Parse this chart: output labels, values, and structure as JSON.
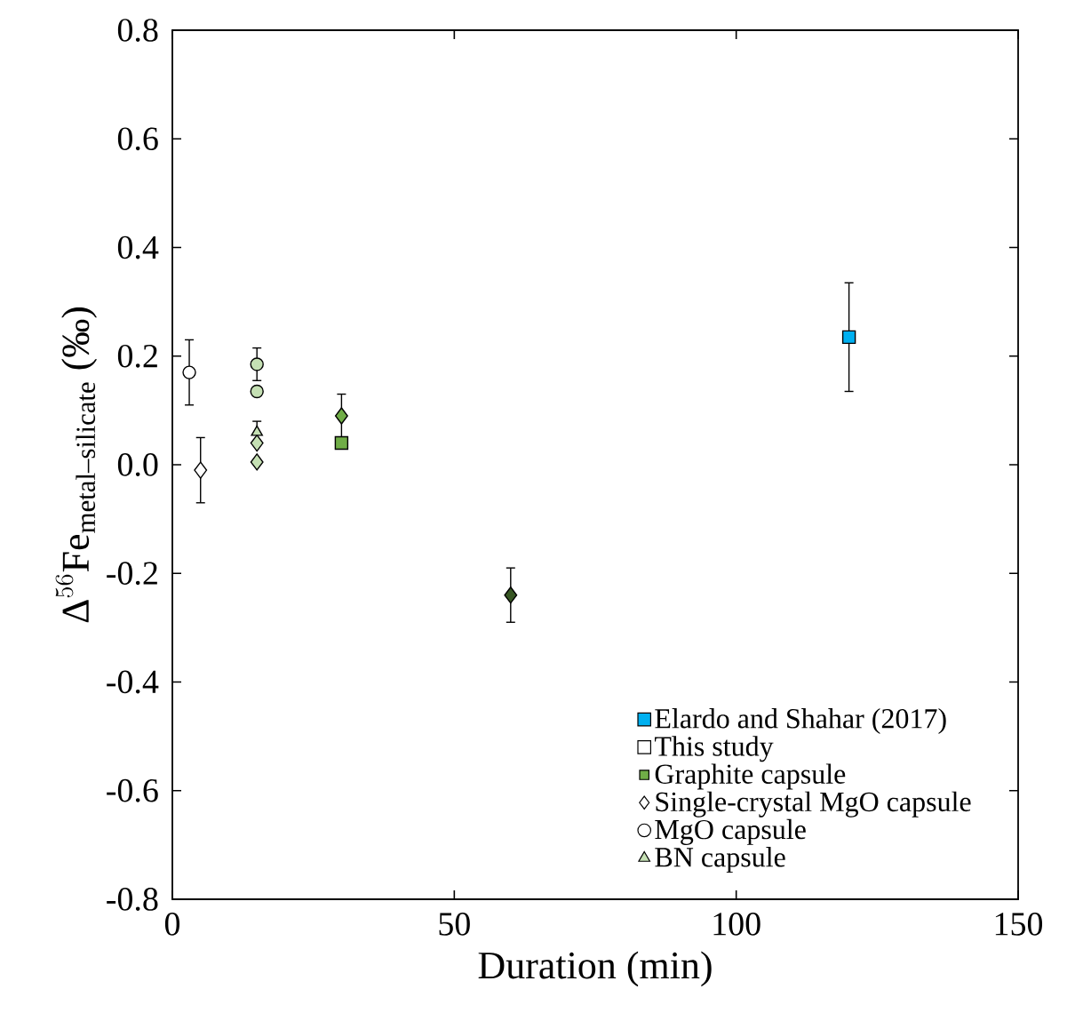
{
  "chart_data": {
    "type": "scatter",
    "xlabel": "Duration (min)",
    "ylabel": "\\text{Δ}^{56}\\text{Fe}_{\\text{metal–silicate}}\\ \\text{(‰)}",
    "xlim": [
      0,
      150
    ],
    "xticks": [
      0,
      50,
      100,
      150
    ],
    "ylim": [
      -0.8,
      0.8
    ],
    "yticks": [
      {
        "value": -0.8,
        "label": "-0.8"
      },
      {
        "value": -0.6,
        "label": "-0.6"
      },
      {
        "value": -0.4,
        "label": "-0.4"
      },
      {
        "value": -0.2,
        "label": "-0.2"
      },
      {
        "value": 0,
        "label": "0.0"
      },
      {
        "value": 0.2,
        "label": "0.2"
      },
      {
        "value": 0.4,
        "label": "0.4"
      },
      {
        "value": 0.6,
        "label": "0.6"
      },
      {
        "value": 0.8,
        "label": "0.8"
      }
    ],
    "legend": "bottom right",
    "grid": false,
    "annotations": [
      "This study"
    ],
    "series": [
      {
        "name": "Elardo and Shahar (2017)",
        "marker": "square",
        "color": "#00b0f0",
        "x": [
          120
        ],
        "values": [
          0.235
        ],
        "errors": [
          0.1
        ]
      },
      {
        "name": "Graphite capsule",
        "marker": "square",
        "colors": [
          "#70ad47"
        ],
        "x": [
          30
        ],
        "values": [
          0.04
        ],
        "errors": [
          null
        ]
      },
      {
        "name": "Single-crystal MgO capsule",
        "marker": "diamond",
        "colors": [
          "#ffffff",
          "#c5e0b4",
          "#c5e0b4",
          "#70ad47",
          "#375623"
        ],
        "x": [
          5,
          15,
          15,
          30,
          60
        ],
        "values": [
          -0.01,
          0.04,
          0.005,
          0.09,
          -0.24
        ],
        "errors": [
          0.06,
          null,
          null,
          0.04,
          0.05
        ]
      },
      {
        "name": "MgO capsule",
        "marker": "circle",
        "colors": [
          "#ffffff",
          "#c5e0b4",
          "#c5e0b4"
        ],
        "x": [
          3,
          15,
          15
        ],
        "values": [
          0.17,
          0.185,
          0.135
        ],
        "errors": [
          0.06,
          0.03,
          null
        ]
      },
      {
        "name": "BN capsule",
        "marker": "triangle",
        "colors": [
          "#c5e0b4"
        ],
        "x": [
          15
        ],
        "values": [
          0.06
        ],
        "errors": [
          0.02
        ]
      }
    ]
  }
}
